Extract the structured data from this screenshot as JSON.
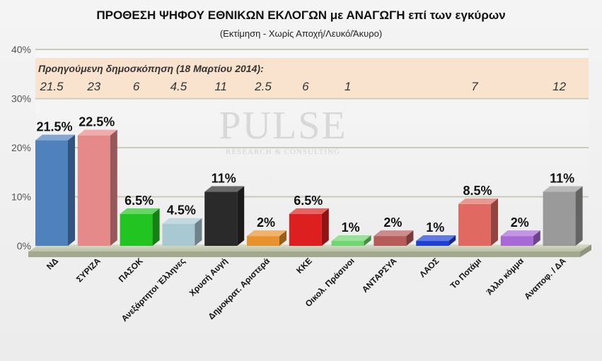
{
  "chart_data": {
    "type": "bar",
    "title": "ΠΡΟΘΕΣΗ ΨΗΦΟΥ ΕΘΝΙΚΩΝ ΕΚΛΟΓΩΝ με ΑΝΑΓΩΓΗ επί των εγκύρων",
    "subtitle": "(Εκτίμηση  -  Χωρίς Αποχή/Λευκό/Άκυρο)",
    "ylim": [
      0,
      40
    ],
    "yticks": [
      "0%",
      "10%",
      "20%",
      "30%",
      "40%"
    ],
    "ytick_values": [
      0,
      10,
      20,
      30,
      40
    ],
    "grid": true,
    "categories": [
      "ΝΔ",
      "ΣΥΡΙΖΑ",
      "ΠΑΣΟΚ",
      "Ανεξάρτητοι Έλληνες",
      "Χρυσή Αυγή",
      "Δημοκρατ. Αριστερά",
      "ΚΚΕ",
      "Οικολ. Πράσινοι",
      "ΑΝΤΑΡΣΥΑ",
      "ΛΑΟΣ",
      "Το Ποτάμι",
      "Άλλο κόμμα",
      "Αναποφ. / ΔΑ"
    ],
    "values": [
      21.5,
      22.5,
      6.5,
      4.5,
      11,
      2,
      6.5,
      1,
      2,
      1,
      8.5,
      2,
      11
    ],
    "value_labels": [
      "21.5%",
      "22.5%",
      "6.5%",
      "4.5%",
      "11%",
      "2%",
      "6.5%",
      "1%",
      "2%",
      "1%",
      "8.5%",
      "2%",
      "11%"
    ],
    "colors": [
      "#4f81bd",
      "#e6898a",
      "#22c422",
      "#a8c8d2",
      "#2a2a2a",
      "#e8922e",
      "#dd1f1f",
      "#6ed66e",
      "#b65a5a",
      "#1f3fd6",
      "#e06a62",
      "#a869d6",
      "#9a9a9a"
    ],
    "previous_poll": {
      "label": "Προηγούμενη δημοσκόπηση (18 Μαρτίου 2014):",
      "values": [
        "21.5",
        "23",
        "6",
        "4.5",
        "11",
        "2.5",
        "6",
        "1",
        "",
        "",
        "7",
        "",
        "12"
      ]
    }
  },
  "watermark": {
    "main": "PULSE",
    "sub": "RESEARCH & CONSULTING"
  }
}
